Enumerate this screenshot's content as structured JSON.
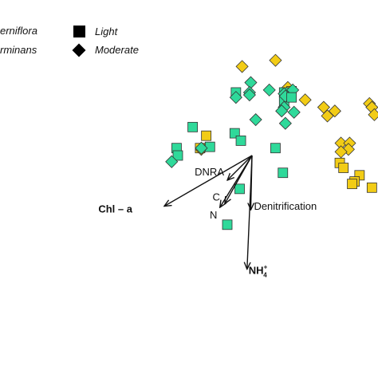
{
  "chart_data": {
    "type": "scatter",
    "title": "",
    "xlabel": "",
    "ylabel": "",
    "xlim": [
      -1.0,
      1.0
    ],
    "ylim": [
      -1.0,
      1.0
    ],
    "grid": false,
    "legend_placement": "top-left",
    "legend": {
      "species": [
        {
          "label": "erniflora",
          "color": "#f2cc16"
        },
        {
          "label": "rminans",
          "color": "#2fd99a"
        }
      ],
      "light": [
        {
          "label": "Light",
          "shape": "square"
        },
        {
          "label": "Moderate",
          "shape": "diamond"
        }
      ]
    },
    "vectors": [
      {
        "label": "Chl – a",
        "bold": true,
        "x": -0.71,
        "y": -0.41
      },
      {
        "label": "DNRA",
        "bold": false,
        "x": -0.2,
        "y": -0.2
      },
      {
        "label": "C",
        "bold": false,
        "x": -0.22,
        "y": -0.39
      },
      {
        "label": "N",
        "bold": false,
        "x": -0.26,
        "y": -0.42
      },
      {
        "label": "Denitrification",
        "bold": false,
        "x": -0.01,
        "y": -0.44
      },
      {
        "label": "NH",
        "sup": "+",
        "sub": "4",
        "bold": true,
        "x": -0.04,
        "y": -0.92
      }
    ],
    "series": [
      {
        "name": "erniflora",
        "color": "#f2cc16",
        "points": [
          {
            "x": -0.08,
            "y": 0.72,
            "shape": "diamond"
          },
          {
            "x": 0.19,
            "y": 0.77,
            "shape": "diamond"
          },
          {
            "x": 0.29,
            "y": 0.55,
            "shape": "diamond"
          },
          {
            "x": 0.32,
            "y": 0.52,
            "shape": "square"
          },
          {
            "x": 0.43,
            "y": 0.45,
            "shape": "diamond"
          },
          {
            "x": 0.58,
            "y": 0.39,
            "shape": "diamond"
          },
          {
            "x": 0.67,
            "y": 0.36,
            "shape": "diamond"
          },
          {
            "x": 0.95,
            "y": 0.42,
            "shape": "diamond"
          },
          {
            "x": 0.97,
            "y": 0.39,
            "shape": "diamond"
          },
          {
            "x": 0.61,
            "y": 0.32,
            "shape": "diamond"
          },
          {
            "x": 0.99,
            "y": 0.33,
            "shape": "diamond"
          },
          {
            "x": -0.37,
            "y": 0.16,
            "shape": "square"
          },
          {
            "x": -0.42,
            "y": 0.06,
            "shape": "square"
          },
          {
            "x": -0.41,
            "y": 0.05,
            "shape": "diamond"
          },
          {
            "x": 0.72,
            "y": 0.1,
            "shape": "diamond"
          },
          {
            "x": 0.79,
            "y": 0.1,
            "shape": "diamond"
          },
          {
            "x": 0.78,
            "y": 0.05,
            "shape": "diamond"
          },
          {
            "x": 0.72,
            "y": 0.03,
            "shape": "diamond"
          },
          {
            "x": 0.71,
            "y": -0.06,
            "shape": "square"
          },
          {
            "x": 0.74,
            "y": -0.1,
            "shape": "square"
          },
          {
            "x": 0.87,
            "y": -0.16,
            "shape": "square"
          },
          {
            "x": 0.83,
            "y": -0.21,
            "shape": "square"
          },
          {
            "x": 0.97,
            "y": -0.26,
            "shape": "square"
          },
          {
            "x": 0.81,
            "y": -0.23,
            "shape": "square"
          }
        ]
      },
      {
        "name": "rminans",
        "color": "#2fd99a",
        "points": [
          {
            "x": -0.01,
            "y": 0.59,
            "shape": "diamond"
          },
          {
            "x": -0.02,
            "y": 0.51,
            "shape": "diamond"
          },
          {
            "x": 0.14,
            "y": 0.53,
            "shape": "diamond"
          },
          {
            "x": -0.02,
            "y": 0.49,
            "shape": "diamond"
          },
          {
            "x": -0.13,
            "y": 0.51,
            "shape": "square"
          },
          {
            "x": -0.13,
            "y": 0.47,
            "shape": "diamond"
          },
          {
            "x": 0.26,
            "y": 0.51,
            "shape": "square"
          },
          {
            "x": 0.26,
            "y": 0.44,
            "shape": "square"
          },
          {
            "x": 0.26,
            "y": 0.5,
            "shape": "diamond"
          },
          {
            "x": 0.27,
            "y": 0.48,
            "shape": "diamond"
          },
          {
            "x": 0.33,
            "y": 0.53,
            "shape": "diamond"
          },
          {
            "x": 0.32,
            "y": 0.47,
            "shape": "square"
          },
          {
            "x": 0.26,
            "y": 0.39,
            "shape": "diamond"
          },
          {
            "x": 0.34,
            "y": 0.35,
            "shape": "diamond"
          },
          {
            "x": 0.24,
            "y": 0.36,
            "shape": "diamond"
          },
          {
            "x": 0.03,
            "y": 0.29,
            "shape": "diamond"
          },
          {
            "x": 0.27,
            "y": 0.26,
            "shape": "diamond"
          },
          {
            "x": -0.48,
            "y": 0.23,
            "shape": "square"
          },
          {
            "x": -0.14,
            "y": 0.18,
            "shape": "square"
          },
          {
            "x": -0.09,
            "y": 0.12,
            "shape": "square"
          },
          {
            "x": -0.34,
            "y": 0.07,
            "shape": "square"
          },
          {
            "x": -0.61,
            "y": 0.06,
            "shape": "square"
          },
          {
            "x": -0.6,
            "y": 0.0,
            "shape": "square"
          },
          {
            "x": -0.65,
            "y": -0.05,
            "shape": "diamond"
          },
          {
            "x": -0.41,
            "y": 0.06,
            "shape": "diamond"
          },
          {
            "x": 0.19,
            "y": 0.06,
            "shape": "square"
          },
          {
            "x": 0.25,
            "y": -0.14,
            "shape": "square"
          },
          {
            "x": -0.1,
            "y": -0.27,
            "shape": "square"
          },
          {
            "x": -0.2,
            "y": -0.56,
            "shape": "square"
          }
        ]
      }
    ]
  }
}
